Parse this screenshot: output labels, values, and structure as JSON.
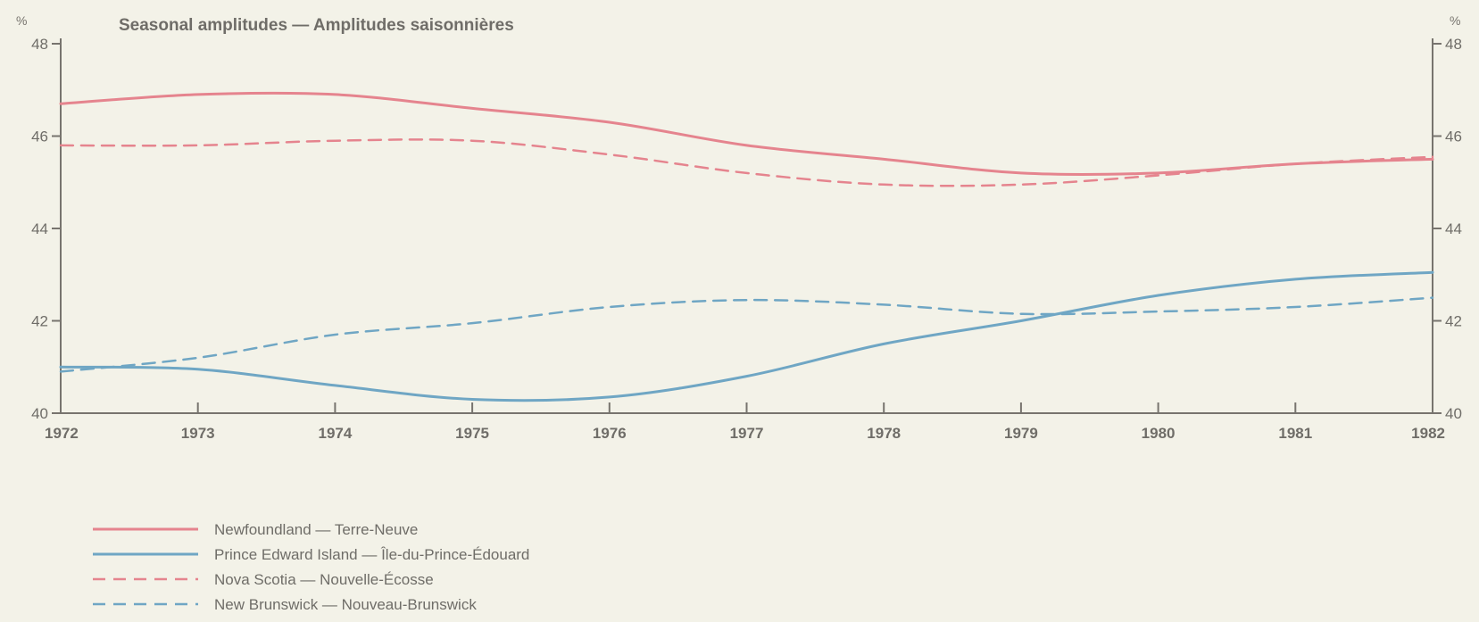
{
  "chart_data": {
    "type": "line",
    "title": "Seasonal amplitudes — Amplitudes saisonnières",
    "y_unit_left": "%",
    "y_unit_right": "%",
    "x": [
      1972,
      1973,
      1974,
      1975,
      1976,
      1977,
      1978,
      1979,
      1980,
      1981,
      1982
    ],
    "x_tick_labels": [
      "1972",
      "1973",
      "1974",
      "1975",
      "1976",
      "1977",
      "1978",
      "1979",
      "1980",
      "1981",
      "1982"
    ],
    "ylim": [
      40,
      48
    ],
    "y_ticks": [
      40,
      42,
      44,
      46,
      48
    ],
    "y_tick_labels": [
      "40",
      "42",
      "44",
      "46",
      "48"
    ],
    "grid": false,
    "legend_position": "bottom-left",
    "series": [
      {
        "name": "Newfoundland — Terre-Neuve",
        "color": "#e5848e",
        "dash": "solid",
        "values": [
          46.7,
          46.9,
          46.9,
          46.6,
          46.3,
          45.8,
          45.5,
          45.2,
          45.2,
          45.4,
          45.5
        ]
      },
      {
        "name": "Prince Edward Island — Île-du-Prince-Édouard",
        "color": "#6fa6c4",
        "dash": "solid",
        "values": [
          41.0,
          40.95,
          40.6,
          40.3,
          40.35,
          40.8,
          41.5,
          42.0,
          42.55,
          42.9,
          43.05
        ]
      },
      {
        "name": "Nova Scotia — Nouvelle-Écosse",
        "color": "#e5848e",
        "dash": "dashed",
        "values": [
          45.8,
          45.8,
          45.9,
          45.9,
          45.6,
          45.2,
          44.95,
          44.95,
          45.15,
          45.4,
          45.55
        ]
      },
      {
        "name": "New Brunswick — Nouveau-Brunswick",
        "color": "#6fa6c4",
        "dash": "dashed",
        "values": [
          40.9,
          41.2,
          41.7,
          41.95,
          42.3,
          42.45,
          42.35,
          42.15,
          42.2,
          42.3,
          42.5
        ]
      }
    ]
  }
}
